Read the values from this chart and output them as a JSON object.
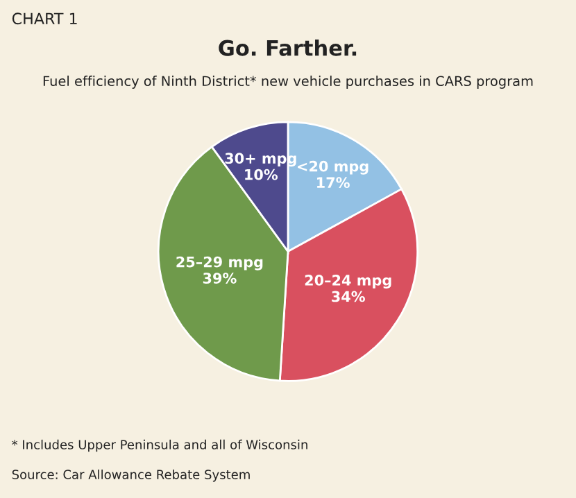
{
  "chart_data": {
    "type": "pie",
    "title": "Go. Farther.",
    "subtitle": "Fuel efficiency of Ninth District* new vehicle purchases in CARS program",
    "categories": [
      "<20 mpg",
      "20–24 mpg",
      "25–29 mpg",
      "30+ mpg"
    ],
    "values": [
      17,
      34,
      39,
      10
    ],
    "value_labels": [
      "17%",
      "34%",
      "39%",
      "10%"
    ],
    "colors": [
      "#93c1e4",
      "#d9505f",
      "#6f9a4b",
      "#4e4a8d"
    ],
    "annotations": [
      "CHART 1",
      "* Includes Upper Peninsula and all of Wisconsin",
      "Source: Car Allowance Rebate System"
    ]
  }
}
